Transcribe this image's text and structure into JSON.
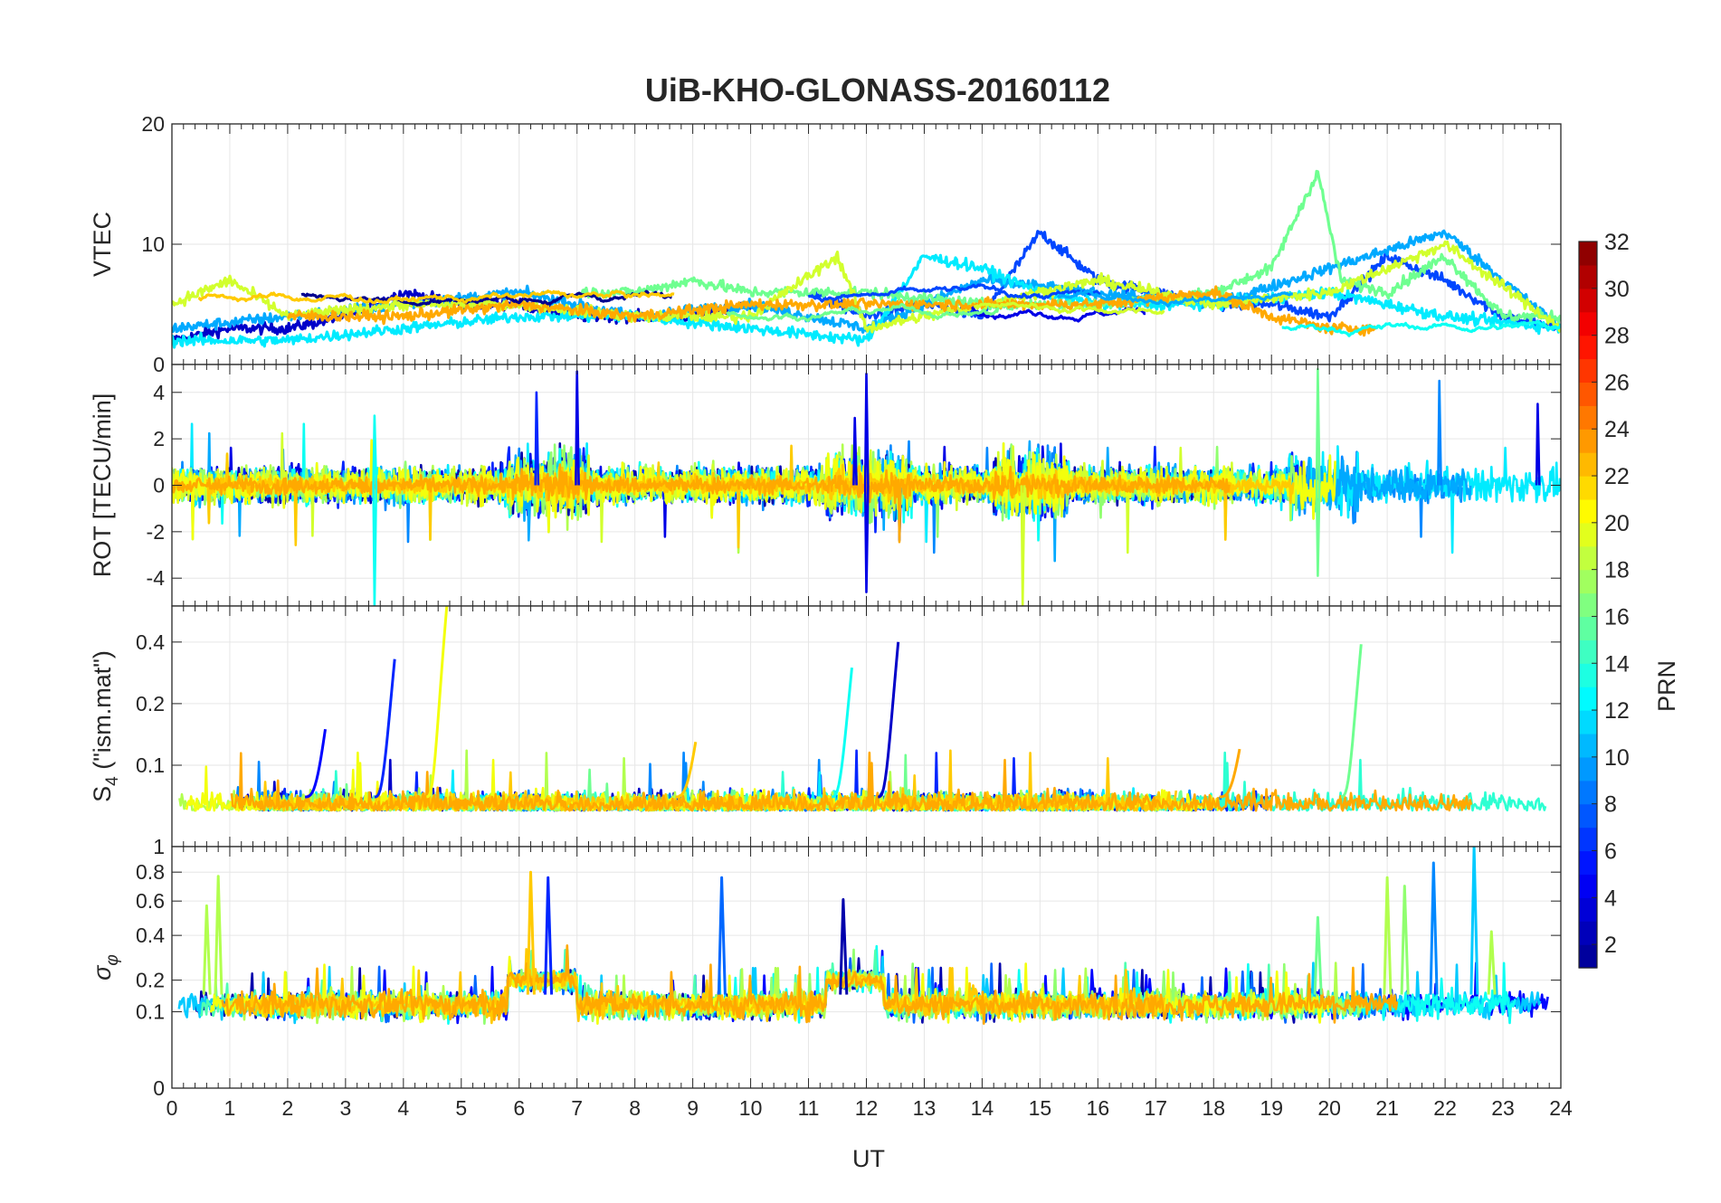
{
  "figure_title": "UiB-KHO-GLONASS-20160112",
  "x_axis": {
    "label": "UT",
    "min": 0,
    "max": 24,
    "ticks": [
      0,
      1,
      2,
      3,
      4,
      5,
      6,
      7,
      8,
      9,
      10,
      11,
      12,
      13,
      14,
      15,
      16,
      17,
      18,
      19,
      20,
      21,
      22,
      23,
      24
    ]
  },
  "colorbar": {
    "label": "PRN",
    "min": 1,
    "max": 32,
    "ticks": [
      2,
      4,
      6,
      8,
      10,
      12,
      14,
      16,
      18,
      20,
      22,
      24,
      26,
      28,
      30,
      32
    ],
    "colormap": [
      "#00008f",
      "#0000ff",
      "#0080ff",
      "#00ffff",
      "#80ff80",
      "#ffff00",
      "#ff8000",
      "#ff0000",
      "#800000"
    ]
  },
  "chart_data": [
    {
      "id": "vtec",
      "type": "line",
      "ylabel": "VTEC",
      "ylim": [
        0,
        20
      ],
      "yticks": [
        0,
        10,
        20
      ],
      "grid": true,
      "note_values": "multiple PRN series overlaid, values approximate",
      "series": [
        {
          "prn": 3,
          "x": [
            0,
            1,
            2,
            3,
            4,
            5,
            6,
            7,
            8,
            9,
            10
          ],
          "y": [
            2,
            3,
            3,
            4,
            6,
            5,
            5,
            4,
            4,
            4,
            5
          ]
        },
        {
          "prn": 7,
          "x": [
            11,
            12,
            13,
            14,
            15,
            16,
            17,
            18,
            19,
            20,
            21,
            22,
            23,
            24
          ],
          "y": [
            6,
            4,
            5,
            4,
            11,
            7,
            6,
            5,
            5,
            4,
            9,
            7,
            4,
            3
          ]
        },
        {
          "prn": 10,
          "x": [
            0,
            2,
            4,
            6,
            8,
            10,
            12,
            14,
            16,
            18,
            20,
            22,
            24
          ],
          "y": [
            3,
            4,
            5,
            6,
            4,
            5,
            3,
            7,
            6,
            5,
            8,
            11,
            3
          ]
        },
        {
          "prn": 12,
          "x": [
            0,
            2,
            4,
            6,
            8,
            10,
            12,
            13,
            14,
            15,
            16,
            18,
            20,
            22,
            24
          ],
          "y": [
            2,
            2,
            3,
            4,
            4,
            3,
            2,
            9,
            8,
            6,
            5,
            5,
            6,
            4,
            3
          ]
        },
        {
          "prn": 16,
          "x": [
            7,
            8,
            9,
            10,
            12,
            14,
            16,
            18,
            19,
            19.8,
            20.2,
            21,
            22,
            23,
            24
          ],
          "y": [
            6,
            6,
            7,
            6,
            6,
            5,
            5,
            6,
            8,
            16,
            7,
            6,
            9,
            4,
            4
          ]
        },
        {
          "prn": 19,
          "x": [
            0,
            1,
            2,
            4,
            6,
            8,
            10,
            11.5,
            12,
            14,
            16,
            18,
            20,
            22,
            24
          ],
          "y": [
            5,
            7,
            4,
            5,
            5,
            4,
            4,
            9,
            3,
            5,
            7,
            5,
            6,
            10,
            3
          ]
        },
        {
          "prn": 23,
          "x": [
            2,
            4,
            6,
            8,
            10,
            12,
            14,
            16,
            18,
            19,
            20,
            20.8
          ],
          "y": [
            4,
            4,
            5,
            4,
            5,
            5,
            5,
            5,
            6,
            4,
            3,
            3
          ]
        }
      ]
    },
    {
      "id": "rot",
      "type": "line",
      "ylabel": "ROT [TECU/min]",
      "ylim": [
        -5.2,
        5.2
      ],
      "yticks": [
        -4,
        -2,
        0,
        2,
        4
      ],
      "grid": true,
      "note_values": "multiple PRN series overlaid, values approximate",
      "spikes": [
        {
          "x": 3.5,
          "y": -5.2,
          "prn": 13
        },
        {
          "x": 3.5,
          "y": 3.0,
          "prn": 13
        },
        {
          "x": 6.3,
          "y": 4.0,
          "prn": 6
        },
        {
          "x": 7.0,
          "y": 4.9,
          "prn": 4
        },
        {
          "x": 12.0,
          "y": 4.8,
          "prn": 4
        },
        {
          "x": 12.0,
          "y": -4.6,
          "prn": 4
        },
        {
          "x": 11.8,
          "y": 2.9,
          "prn": 4
        },
        {
          "x": 14.7,
          "y": -5.2,
          "prn": 19
        },
        {
          "x": 19.8,
          "y": 5.0,
          "prn": 16
        },
        {
          "x": 19.8,
          "y": -3.9,
          "prn": 16
        },
        {
          "x": 21.9,
          "y": 4.5,
          "prn": 9
        },
        {
          "x": 23.6,
          "y": 3.5,
          "prn": 4
        }
      ]
    },
    {
      "id": "s4",
      "type": "line",
      "ylabel": "S",
      "ylabel_sub": "4",
      "ylabel_rest": " (\"ism.mat\")",
      "ylim": [
        0.04,
        0.6
      ],
      "yticks": [
        0.1,
        0.2,
        0.4
      ],
      "yscale": "log",
      "grid": true,
      "peaks": [
        {
          "x": 3.8,
          "y": 0.33,
          "prn": 6
        },
        {
          "x": 4.7,
          "y": 0.6,
          "prn": 20
        },
        {
          "x": 11.7,
          "y": 0.3,
          "prn": 13
        },
        {
          "x": 12.5,
          "y": 0.4,
          "prn": 3
        },
        {
          "x": 20.5,
          "y": 0.39,
          "prn": 16
        },
        {
          "x": 2.6,
          "y": 0.15,
          "prn": 5
        },
        {
          "x": 9.0,
          "y": 0.13,
          "prn": 22
        },
        {
          "x": 18.4,
          "y": 0.12,
          "prn": 23
        }
      ]
    },
    {
      "id": "sigma_phi",
      "type": "line",
      "ylabel": "σ",
      "ylabel_sub": "φ",
      "ylim": [
        0,
        1
      ],
      "yticks": [
        0,
        0.1,
        0.2,
        0.4,
        0.6,
        0.8,
        1
      ],
      "yscale": "sqrt",
      "grid": true,
      "peaks": [
        {
          "x": 0.6,
          "y": 0.57,
          "prn": 18
        },
        {
          "x": 0.8,
          "y": 0.77,
          "prn": 18
        },
        {
          "x": 6.2,
          "y": 0.8,
          "prn": 22
        },
        {
          "x": 6.5,
          "y": 0.76,
          "prn": 6
        },
        {
          "x": 9.5,
          "y": 0.76,
          "prn": 8
        },
        {
          "x": 11.6,
          "y": 0.61,
          "prn": 2
        },
        {
          "x": 19.8,
          "y": 0.5,
          "prn": 16
        },
        {
          "x": 21.0,
          "y": 0.76,
          "prn": 18
        },
        {
          "x": 21.3,
          "y": 0.7,
          "prn": 17
        },
        {
          "x": 21.8,
          "y": 0.87,
          "prn": 9
        },
        {
          "x": 22.5,
          "y": 1.0,
          "prn": 11
        },
        {
          "x": 22.8,
          "y": 0.42,
          "prn": 18
        }
      ]
    }
  ]
}
